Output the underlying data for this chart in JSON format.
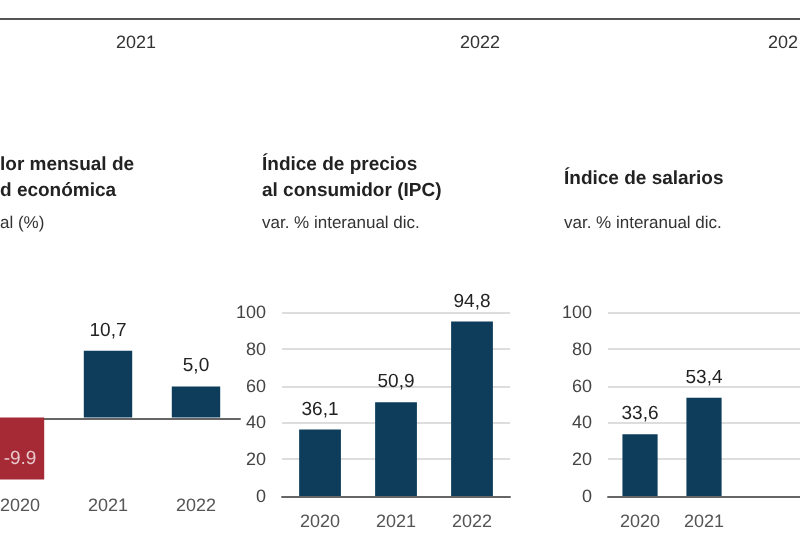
{
  "chart_data": [
    {
      "type": "other",
      "annotations": [
        "2021",
        "2022",
        "202"
      ]
    },
    {
      "type": "bar",
      "title": "lor mensual de\nd económica",
      "subtitle": "al (%)",
      "categories": [
        "2020",
        "2021",
        "2022"
      ],
      "values": [
        -9.9,
        10.7,
        5.0
      ],
      "colors": [
        "#a52a35",
        "#0e3d5c",
        "#0e3d5c"
      ],
      "value_labels": [
        "-9.9",
        "10,7",
        "5,0"
      ],
      "tick_labels": "x"
    },
    {
      "type": "bar",
      "title": "Índice de precios\nal consumidor (IPC)",
      "subtitle": "var. % interanual dic.",
      "categories": [
        "2020",
        "2021",
        "2022"
      ],
      "values": [
        36.1,
        50.9,
        94.8
      ],
      "colors": [
        "#0e3d5c",
        "#0e3d5c",
        "#0e3d5c"
      ],
      "value_labels": [
        "36,1",
        "50,9",
        "94,8"
      ],
      "ylim": [
        0,
        100
      ],
      "yticks": [
        0,
        20,
        40,
        60,
        80,
        100
      ],
      "grid": "y"
    },
    {
      "type": "bar",
      "title": "Índice de salarios",
      "subtitle": "var. % interanual dic.",
      "categories": [
        "2020",
        "2021",
        null
      ],
      "values": [
        33.6,
        53.4,
        null
      ],
      "colors": [
        "#0e3d5c",
        "#0e3d5c",
        "#0e3d5c"
      ],
      "value_labels": [
        "33,6",
        "53,4",
        null
      ],
      "ylim": [
        0,
        100
      ],
      "yticks": [
        0,
        20,
        40,
        60,
        80,
        100
      ],
      "grid": "y"
    }
  ]
}
